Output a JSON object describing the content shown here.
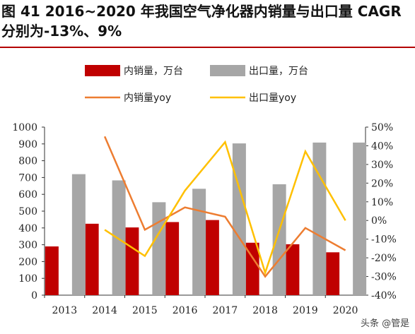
{
  "title": "图 41 2016~2020 年我国空气净化器内销量与出口量 CAGR 分别为-13%、9%",
  "watermark": "头条 @管是",
  "chart_data": {
    "type": "bar",
    "categories": [
      "2013",
      "2014",
      "2015",
      "2016",
      "2017",
      "2018",
      "2019",
      "2020"
    ],
    "left_axis": {
      "ylim": [
        0,
        1000
      ],
      "ticks": [
        "0",
        "100",
        "200",
        "300",
        "400",
        "500",
        "600",
        "700",
        "800",
        "900",
        "1000"
      ]
    },
    "right_axis": {
      "ylim": [
        -0.4,
        0.5
      ],
      "ticks": [
        "-40%",
        "-30%",
        "-20%",
        "-10%",
        "0%",
        "10%",
        "20%",
        "30%",
        "40%",
        "50%"
      ]
    },
    "series": [
      {
        "name": "内销量，万台",
        "kind": "bar",
        "axis": "left",
        "color": "#c00000",
        "values": [
          290,
          425,
          403,
          435,
          447,
          312,
          303,
          255
        ]
      },
      {
        "name": "出口量，万台",
        "kind": "bar",
        "axis": "left",
        "color": "#a6a6a6",
        "values": [
          720,
          683,
          553,
          633,
          903,
          660,
          908,
          908
        ]
      },
      {
        "name": "内销量yoy",
        "kind": "line",
        "axis": "right",
        "color": "#ed7d31",
        "values": [
          null,
          0.45,
          -0.05,
          0.07,
          0.02,
          -0.3,
          -0.04,
          -0.16
        ]
      },
      {
        "name": "出口量yoy",
        "kind": "line",
        "axis": "right",
        "color": "#ffc000",
        "values": [
          null,
          -0.05,
          -0.19,
          0.16,
          0.42,
          -0.28,
          0.37,
          0.0
        ]
      }
    ]
  }
}
